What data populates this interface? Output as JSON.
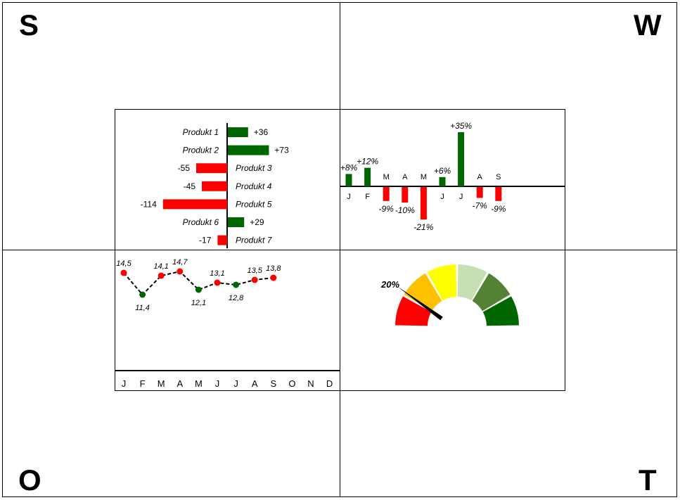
{
  "corners": {
    "tl": "S",
    "tr": "W",
    "bl": "O",
    "br": "T"
  },
  "chart_data": [
    {
      "type": "bar",
      "orientation": "horizontal",
      "categories": [
        "Produkt 1",
        "Produkt 2",
        "Produkt 3",
        "Produkt 4",
        "Produkt 5",
        "Produkt 6",
        "Produkt 7"
      ],
      "values": [
        36,
        73,
        -55,
        -45,
        -114,
        29,
        -17
      ],
      "labels": [
        "+36",
        "+73",
        "-55",
        "-45",
        "-114",
        "+29",
        "-17"
      ],
      "colors": {
        "positive": "#006600",
        "negative": "#ff0000"
      }
    },
    {
      "type": "bar",
      "categories": [
        "J",
        "F",
        "M",
        "A",
        "M",
        "J",
        "J",
        "A",
        "S"
      ],
      "values": [
        8,
        12,
        -9,
        -10,
        -21,
        6,
        35,
        -7,
        -9
      ],
      "labels": [
        "+8%",
        "+12%",
        "-9%",
        "-10%",
        "-21%",
        "+6%",
        "+35%",
        "-7%",
        "-9%"
      ],
      "colors": {
        "positive": "#006600",
        "negative": "#ff0000"
      }
    },
    {
      "type": "line",
      "categories": [
        "J",
        "F",
        "M",
        "A",
        "M",
        "J",
        "J",
        "A",
        "S",
        "O",
        "N",
        "D"
      ],
      "values": [
        14.5,
        11.4,
        14.1,
        14.7,
        12.1,
        13.1,
        12.8,
        13.5,
        13.8
      ],
      "labels": [
        "14,5",
        "11,4",
        "14,1",
        "14,7",
        "12,1",
        "13,1",
        "12,8",
        "13,5",
        "13,8"
      ],
      "point_colors": [
        "#ff0000",
        "#006600",
        "#ff0000",
        "#ff0000",
        "#006600",
        "#ff0000",
        "#006600",
        "#ff0000",
        "#ff0000"
      ],
      "line_style": "dashed"
    },
    {
      "type": "gauge",
      "value": 20,
      "value_label": "20%",
      "segment_colors": [
        "#ff0000",
        "#ffc000",
        "#ffff00",
        "#c6e0b4",
        "#548235",
        "#006600"
      ]
    }
  ]
}
